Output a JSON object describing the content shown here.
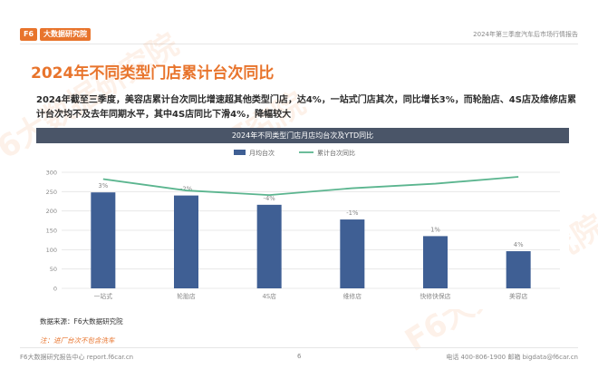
{
  "header": {
    "logo_badge": "F6",
    "logo_text": "大数据研究院",
    "report_name": "2024年第三季度汽车后市场行情报告"
  },
  "page_title": "2024年不同类型门店累计台次同比",
  "summary": "2024年截至三季度，美容店累计台次同比增速超其他类型门店，达4%，一站式门店其次，同比增长3%，而轮胎店、4S店及维修店累计台次均不及去年同期水平，其中4S店同比下滑4%，降幅较大",
  "chart_data": {
    "type": "bar",
    "title": "2024年不同类型门店月店均台次及YTD同比",
    "categories": [
      "一站式",
      "轮胎店",
      "4S店",
      "维修店",
      "快修快保店",
      "美容店"
    ],
    "series": [
      {
        "name": "月均台次",
        "type": "bar",
        "axis": "left",
        "values": [
          248,
          240,
          216,
          178,
          135,
          96
        ],
        "color": "#3f5f94"
      },
      {
        "name": "累计台次同比",
        "type": "line",
        "axis": "right",
        "values": [
          3,
          -2,
          -4,
          -1,
          1,
          4
        ],
        "color": "#5bb58f"
      }
    ],
    "data_labels": [
      "3%",
      "-2%",
      "-4%",
      "-1%",
      "1%",
      "4%"
    ],
    "ylim": [
      0,
      300
    ],
    "yticks": [
      0,
      50,
      100,
      150,
      200,
      250,
      300
    ],
    "y2lim": [
      -45,
      6
    ],
    "legend": "top-center",
    "grid": true
  },
  "source": "数据来源：F6大数据研究院",
  "note": "注：进厂台次不包含洗车",
  "footer": {
    "left": "F6大数据研究报告中心 report.f6car.cn",
    "page": "6",
    "right": "电话 400-806-1900  邮箱 bigdata@f6car.cn"
  },
  "watermark": "F6大数据研究院"
}
